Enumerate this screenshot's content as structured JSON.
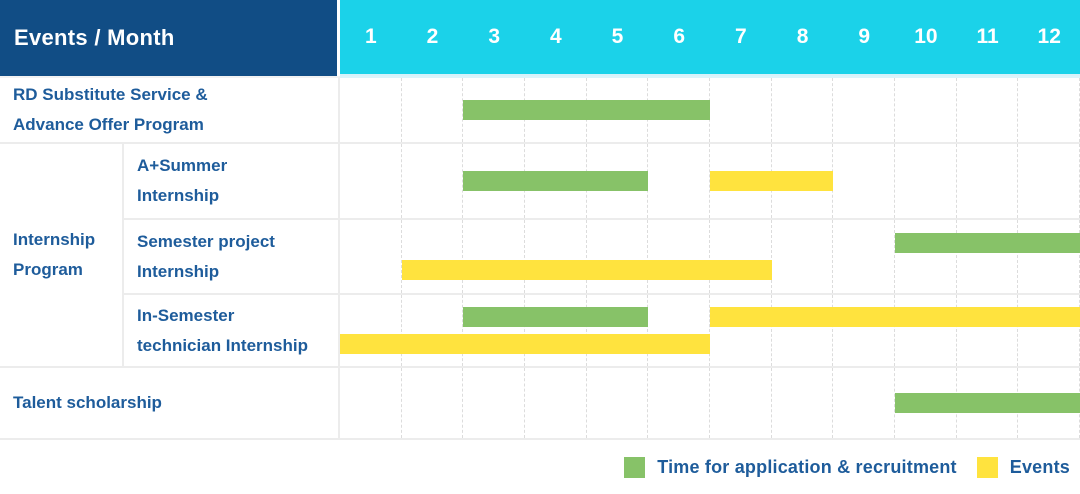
{
  "header": {
    "events_month_label": "Events / Month",
    "months": [
      "1",
      "2",
      "3",
      "4",
      "5",
      "6",
      "7",
      "8",
      "9",
      "10",
      "11",
      "12"
    ]
  },
  "labels": {
    "rd_lines": [
      "RD Substitute Service &",
      "Advance Offer Program"
    ],
    "group_lines": [
      "Internship",
      "Program"
    ],
    "sub1_lines": [
      "A+Summer",
      "Internship"
    ],
    "sub2_lines": [
      "Semester project",
      "Internship"
    ],
    "sub3_lines": [
      "In-Semester",
      "technician Internship"
    ],
    "talent_label": "Talent scholarship"
  },
  "legend": {
    "items": [
      {
        "label": "Time for application & recruitment",
        "swatch": "green"
      },
      {
        "label": "Events",
        "swatch": "yellow"
      }
    ]
  },
  "colors": {
    "header_bg": "#114D85",
    "months_bg": "#1BD2E9",
    "green": "#87C268",
    "yellow": "#FFE33E",
    "label_text": "#1E5C9B",
    "grid_dash": "#DCDCDC",
    "row_border": "#ECECEC",
    "header_underline": "#D7F2FA"
  },
  "chart_data": {
    "type": "gantt",
    "title": "Events / Month",
    "x_unit": "month",
    "x_range": [
      1,
      12
    ],
    "legend": {
      "green": "Time for application & recruitment",
      "yellow": "Events"
    },
    "rows": [
      {
        "label": "RD Substitute Service & Advance Offer Program",
        "group": null,
        "lanes": 1,
        "bars": [
          {
            "color": "green",
            "start_month": 3,
            "end_month": 6,
            "lane": 0
          }
        ]
      },
      {
        "label": "A+Summer Internship",
        "group": "Internship Program",
        "lanes": 1,
        "bars": [
          {
            "color": "green",
            "start_month": 3,
            "end_month": 5,
            "lane": 0
          },
          {
            "color": "yellow",
            "start_month": 7,
            "end_month": 8,
            "lane": 0
          }
        ]
      },
      {
        "label": "Semester project Internship",
        "group": "Internship Program",
        "lanes": 2,
        "bars": [
          {
            "color": "green",
            "start_month": 10,
            "end_month": 12,
            "lane": 0
          },
          {
            "color": "yellow",
            "start_month": 2,
            "end_month": 7,
            "lane": 1
          }
        ]
      },
      {
        "label": "In-Semester technician Internship",
        "group": "Internship Program",
        "lanes": 2,
        "bars": [
          {
            "color": "green",
            "start_month": 3,
            "end_month": 5,
            "lane": 0
          },
          {
            "color": "yellow",
            "start_month": 7,
            "end_month": 12,
            "lane": 0
          },
          {
            "color": "yellow",
            "start_month": 1,
            "end_month": 6,
            "lane": 1
          }
        ]
      },
      {
        "label": "Talent scholarship",
        "group": null,
        "lanes": 1,
        "bars": [
          {
            "color": "green",
            "start_month": 10,
            "end_month": 12,
            "lane": 0
          }
        ]
      }
    ]
  }
}
